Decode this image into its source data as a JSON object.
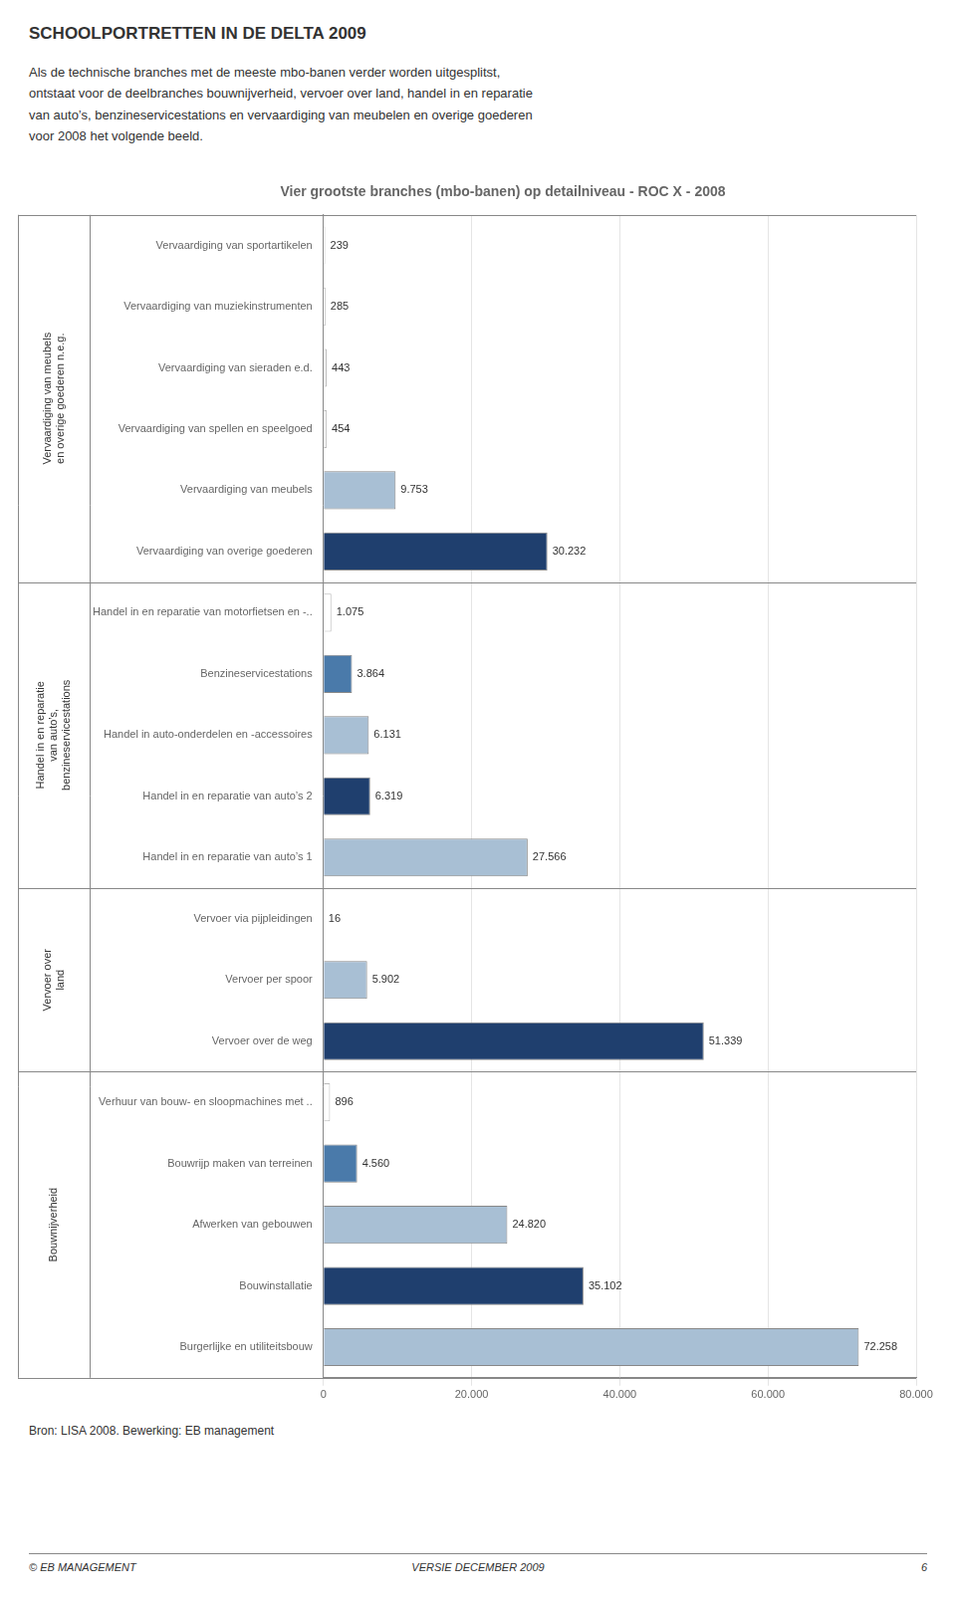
{
  "header_title": "SCHOOLPORTRETTEN IN DE DELTA 2009",
  "intro_text": "Als de technische branches met de meeste mbo-banen verder worden uitgesplitst,\nontstaat voor de deelbranches bouwnijverheid, vervoer over land, handel in en reparatie\nvan auto’s, benzineservicestations en vervaardiging van meubelen en overige goederen\nvoor 2008 het volgende beeld.",
  "source_text": "Bron: LISA 2008. Bewerking: EB management",
  "footer": [
    "© EB MANAGEMENT",
    "VERSIE DECEMBER 2009",
    "6"
  ],
  "chart_data": {
    "type": "bar",
    "orientation": "horizontal",
    "title": "Vier grootste branches (mbo-banen) op detailniveau - ROC X - 2008",
    "categories": [
      "Vervaardiging van sportartikelen",
      "Vervaardiging van muziekinstrumenten",
      "Vervaardiging van sieraden e.d.",
      "Vervaardiging van spellen en speelgoed",
      "Vervaardiging van meubels",
      "Vervaardiging van overige goederen",
      "Handel in en reparatie van motorfietsen en -..",
      "Benzineservicestations",
      "Handel in auto-onderdelen en -accessoires",
      "Handel in en reparatie van auto’s 2",
      "Handel in en reparatie van auto’s 1",
      "Vervoer via pijpleidingen",
      "Vervoer per spoor",
      "Vervoer over de weg",
      "Verhuur van bouw- en sloopmachines met ..",
      "Bouwrijp maken van terreinen",
      "Afwerken van gebouwen",
      "Bouwinstallatie",
      "Burgerlijke en utiliteitsbouw"
    ],
    "values": [
      239,
      285,
      443,
      454,
      9753,
      30232,
      1075,
      3864,
      6131,
      6319,
      27566,
      16,
      5902,
      51339,
      896,
      4560,
      24820,
      35102,
      72258
    ],
    "value_labels": [
      "239",
      "285",
      "443",
      "454",
      "9.753",
      "30.232",
      "1.075",
      "3.864",
      "6.131",
      "6.319",
      "27.566",
      "16",
      "5.902",
      "51.339",
      "896",
      "4.560",
      "24.820",
      "35.102",
      "72.258"
    ],
    "data_labels": true,
    "colors": [
      "#ffffff",
      "#ffffff",
      "#ffffff",
      "#ffffff",
      "#a8bfd4",
      "#1f3f6e",
      "#ffffff",
      "#4a7aaa",
      "#a8bfd4",
      "#1f3f6e",
      "#a8bfd4",
      "#ffffff",
      "#a8bfd4",
      "#1f3f6e",
      "#ffffff",
      "#4a7aaa",
      "#a8bfd4",
      "#1f3f6e",
      "#a8bfd4"
    ],
    "groups": [
      {
        "label": "Vervaardiging van meubels\nen overige goederen n.e.g.",
        "size": 6
      },
      {
        "label": "Handel in en reparatie\nvan auto’s,\nbenzineservicestations",
        "size": 5
      },
      {
        "label": "Vervoer over\nland",
        "size": 3
      },
      {
        "label": "Bouwnijverheid",
        "size": 5
      }
    ],
    "xlim": [
      0,
      80000
    ],
    "xticks": [
      0,
      {
        "value": 20000,
        "label": "20.000"
      },
      {
        "value": 40000,
        "label": "40.000"
      },
      {
        "value": 60000,
        "label": "60.000"
      },
      {
        "value": 80000,
        "label": "80.000"
      }
    ],
    "grid": true
  }
}
